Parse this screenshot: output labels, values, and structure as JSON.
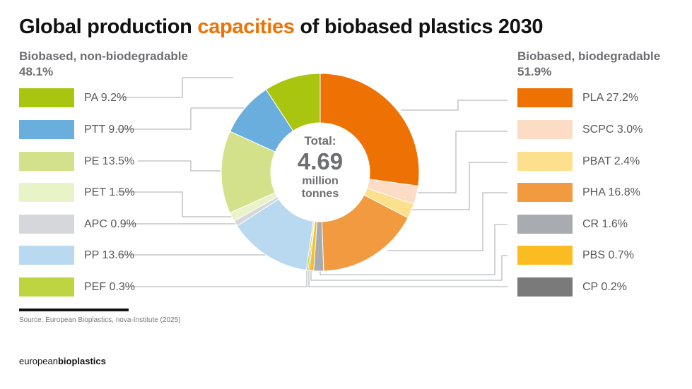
{
  "chart_data": {
    "type": "pie",
    "title_prefix": "Global production ",
    "title_highlight": "capacities",
    "title_suffix": " of biobased plastics 2030",
    "center": {
      "label": "Total:",
      "value": "4.69",
      "unit1": "million",
      "unit2": "tonnes"
    },
    "groups": [
      {
        "name": "Biobased, non-biodegradable",
        "share": "48.1%"
      },
      {
        "name": "Biobased, biodegradable",
        "share": "51.9%"
      }
    ],
    "slices": [
      {
        "name": "PLA",
        "value": 27.2,
        "label": "PLA 27.2%",
        "color": "#ee7203",
        "group": 1
      },
      {
        "name": "SCPC",
        "value": 3.0,
        "label": "SCPC 3.0%",
        "color": "#fcdcc4",
        "group": 1
      },
      {
        "name": "PBAT",
        "value": 2.4,
        "label": "PBAT 2.4%",
        "color": "#fde08e",
        "group": 1
      },
      {
        "name": "PHA",
        "value": 16.8,
        "label": "PHA 16.8%",
        "color": "#f19a40",
        "group": 1
      },
      {
        "name": "CR",
        "value": 1.6,
        "label": "CR 1.6%",
        "color": "#a8abb0",
        "group": 1
      },
      {
        "name": "PBS",
        "value": 0.7,
        "label": "PBS 0.7%",
        "color": "#fbbc22",
        "group": 1
      },
      {
        "name": "CP",
        "value": 0.2,
        "label": "CP 0.2%",
        "color": "#7a7a7a",
        "group": 1
      },
      {
        "name": "PEF",
        "value": 0.3,
        "label": "PEF 0.3%",
        "color": "#bed440",
        "group": 0
      },
      {
        "name": "PP",
        "value": 13.6,
        "label": "PP 13.6%",
        "color": "#b9d9f1",
        "group": 0
      },
      {
        "name": "APC",
        "value": 0.9,
        "label": "APC 0.9%",
        "color": "#d6d7db",
        "group": 0
      },
      {
        "name": "PET",
        "value": 1.5,
        "label": "PET 1.5%",
        "color": "#e8f3c8",
        "group": 0
      },
      {
        "name": "PE",
        "value": 13.5,
        "label": "PE 13.5%",
        "color": "#d3e18a",
        "group": 0
      },
      {
        "name": "PTT",
        "value": 9.0,
        "label": "PTT 9.0%",
        "color": "#6aaede",
        "group": 0
      },
      {
        "name": "PA",
        "value": 9.2,
        "label": "PA 9.2%",
        "color": "#a9c50f",
        "group": 0
      }
    ],
    "left_legend_order": [
      "PA",
      "PTT",
      "PE",
      "PET",
      "APC",
      "PP",
      "PEF"
    ],
    "right_legend_order": [
      "PLA",
      "SCPC",
      "PBAT",
      "PHA",
      "CR",
      "PBS",
      "CP"
    ]
  },
  "footer": {
    "source": "Source: European Bioplastics, nova-Institute (2025)",
    "logo_light": "european",
    "logo_bold": "bioplastics"
  }
}
